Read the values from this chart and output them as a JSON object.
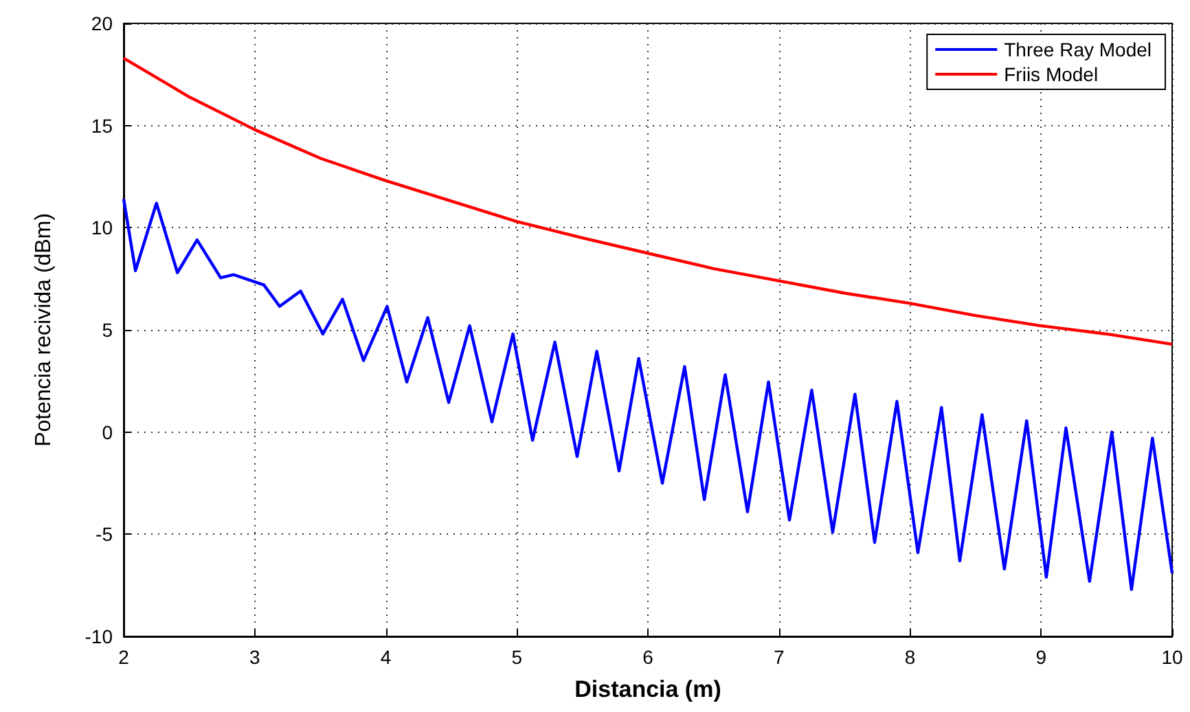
{
  "chart_data": {
    "type": "line",
    "xlabel": "Distancia (m)",
    "ylabel": "Potencia recivida (dBm)",
    "xlim": [
      2,
      10
    ],
    "xticks": [
      2,
      3,
      4,
      5,
      6,
      7,
      8,
      9,
      10
    ],
    "ylim": [
      -10,
      20
    ],
    "yticks": [
      -10,
      -5,
      0,
      5,
      10,
      15,
      20
    ],
    "grid": true,
    "legend": "top right",
    "marker": "none",
    "line_style": "solid",
    "series": [
      {
        "name": "Three Ray Model",
        "color": "#0000ff",
        "x": [
          2,
          2.09,
          2.25,
          2.41,
          2.56,
          2.74,
          2.84,
          3.07,
          3.19,
          3.35,
          3.52,
          3.67,
          3.83,
          4.01,
          4.16,
          4.32,
          4.48,
          4.64,
          4.81,
          4.97,
          5.12,
          5.29,
          5.46,
          5.61,
          5.78,
          5.93,
          6.11,
          6.28,
          6.43,
          6.59,
          6.76,
          6.92,
          7.08,
          7.25,
          7.41,
          7.58,
          7.73,
          7.9,
          8.06,
          8.24,
          8.38,
          8.55,
          8.72,
          8.89,
          9.04,
          9.19,
          9.37,
          9.54,
          9.69,
          9.85,
          10
        ],
        "values": [
          11.4,
          7.9,
          11.2,
          7.8,
          9.4,
          7.55,
          7.7,
          7.2,
          6.15,
          6.9,
          4.8,
          6.5,
          3.5,
          6.15,
          2.45,
          5.6,
          1.45,
          5.2,
          0.5,
          4.8,
          -0.4,
          4.4,
          -1.2,
          3.95,
          -1.9,
          3.6,
          -2.5,
          3.2,
          -3.3,
          2.8,
          -3.9,
          2.45,
          -4.3,
          2.05,
          -4.9,
          1.85,
          -5.4,
          1.5,
          -5.9,
          1.2,
          -6.3,
          0.85,
          -6.7,
          0.55,
          -7.1,
          0.2,
          -7.3,
          0,
          -7.7,
          -0.3,
          -6.9
        ]
      },
      {
        "name": "Friis Model",
        "color": "#ff0000",
        "x": [
          2,
          2.5,
          3,
          3.5,
          4,
          4.5,
          5,
          5.5,
          6,
          6.5,
          7,
          7.5,
          8,
          8.5,
          9,
          9.5,
          10
        ],
        "values": [
          18.3,
          16.4,
          14.8,
          13.4,
          12.3,
          11.3,
          10.3,
          9.5,
          8.75,
          8.0,
          7.4,
          6.8,
          6.3,
          5.7,
          5.2,
          4.8,
          4.3
        ]
      }
    ]
  }
}
